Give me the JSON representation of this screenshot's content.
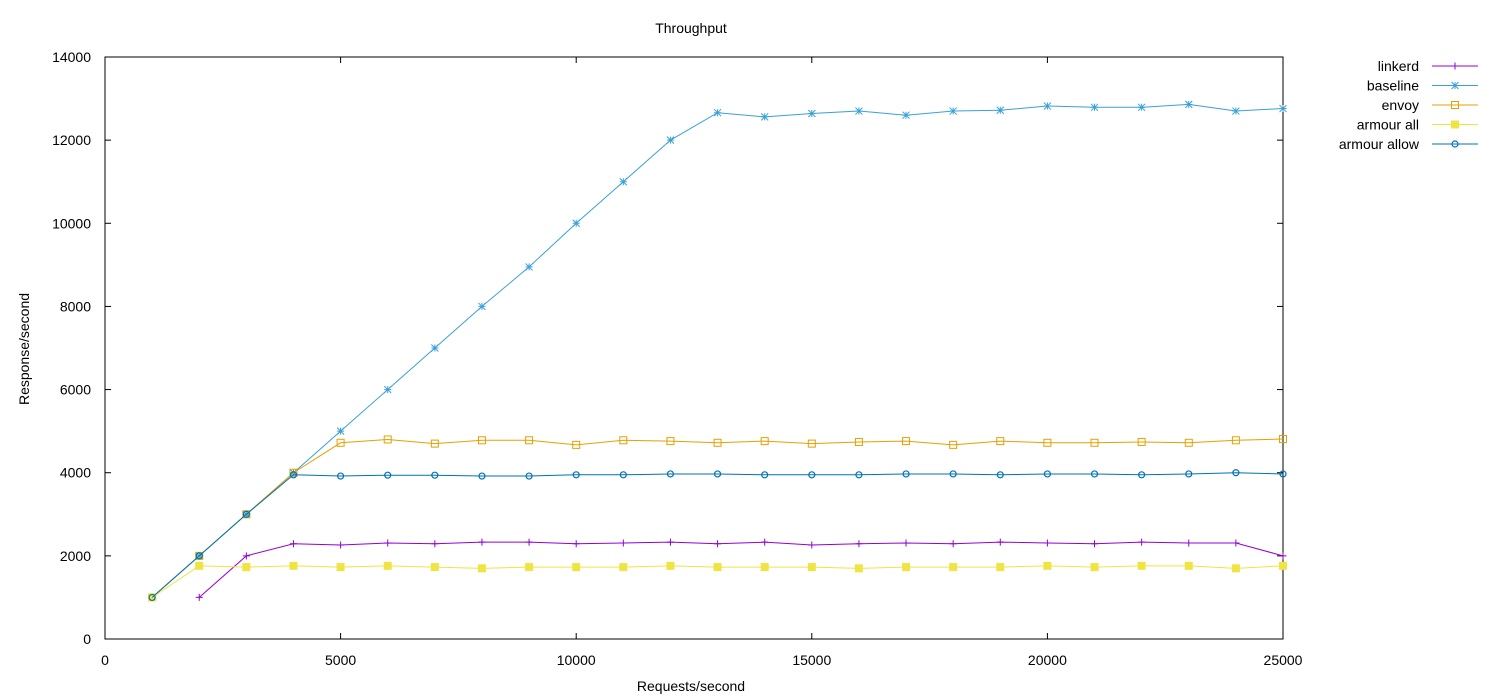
{
  "chart_data": {
    "type": "line",
    "title": "Throughput",
    "xlabel": "Requests/second",
    "ylabel": "Response/second",
    "xlim": [
      0,
      25000
    ],
    "ylim": [
      0,
      14000
    ],
    "xticks": [
      0,
      5000,
      10000,
      15000,
      20000,
      25000
    ],
    "yticks": [
      0,
      2000,
      4000,
      6000,
      8000,
      10000,
      12000,
      14000
    ],
    "grid": false,
    "legend_position": "top-right outside",
    "series": [
      {
        "name": "linkerd",
        "color": "#9400d3",
        "marker": "plus",
        "x": [
          2000,
          3000,
          4000,
          5000,
          6000,
          7000,
          8000,
          9000,
          10000,
          11000,
          12000,
          13000,
          14000,
          15000,
          16000,
          17000,
          18000,
          19000,
          20000,
          21000,
          22000,
          23000,
          24000,
          25000
        ],
        "y": [
          1000,
          2000,
          2290,
          2260,
          2310,
          2290,
          2330,
          2330,
          2290,
          2310,
          2330,
          2290,
          2330,
          2260,
          2290,
          2310,
          2290,
          2330,
          2310,
          2290,
          2330,
          2310,
          2310,
          2000
        ]
      },
      {
        "name": "baseline",
        "color": "#3aa0d8",
        "marker": "star",
        "x": [
          1000,
          2000,
          3000,
          4000,
          5000,
          6000,
          7000,
          8000,
          9000,
          10000,
          11000,
          12000,
          13000,
          14000,
          15000,
          16000,
          17000,
          18000,
          19000,
          20000,
          21000,
          22000,
          23000,
          24000,
          25000
        ],
        "y": [
          1000,
          2000,
          3000,
          4000,
          5000,
          6000,
          7000,
          8000,
          8950,
          10000,
          11000,
          12000,
          12660,
          12560,
          12640,
          12700,
          12600,
          12700,
          12720,
          12820,
          12790,
          12790,
          12860,
          12700,
          12760
        ]
      },
      {
        "name": "envoy",
        "color": "#e6a000",
        "marker": "open-square",
        "x": [
          1000,
          2000,
          3000,
          4000,
          5000,
          6000,
          7000,
          8000,
          9000,
          10000,
          11000,
          12000,
          13000,
          14000,
          15000,
          16000,
          17000,
          18000,
          19000,
          20000,
          21000,
          22000,
          23000,
          24000,
          25000
        ],
        "y": [
          1000,
          2000,
          3000,
          4000,
          4720,
          4800,
          4700,
          4780,
          4780,
          4670,
          4780,
          4760,
          4720,
          4760,
          4700,
          4740,
          4760,
          4670,
          4760,
          4720,
          4720,
          4740,
          4720,
          4780,
          4810
        ]
      },
      {
        "name": "armour all",
        "color": "#f0e442",
        "marker": "filled-square",
        "x": [
          1000,
          2000,
          3000,
          4000,
          5000,
          6000,
          7000,
          8000,
          9000,
          10000,
          11000,
          12000,
          13000,
          14000,
          15000,
          16000,
          17000,
          18000,
          19000,
          20000,
          21000,
          22000,
          23000,
          24000,
          25000
        ],
        "y": [
          1000,
          1760,
          1730,
          1760,
          1730,
          1760,
          1730,
          1700,
          1730,
          1730,
          1730,
          1760,
          1730,
          1730,
          1730,
          1700,
          1730,
          1730,
          1730,
          1760,
          1730,
          1760,
          1760,
          1700,
          1760
        ]
      },
      {
        "name": "armour allow",
        "color": "#0072b2",
        "marker": "open-circle",
        "x": [
          1000,
          2000,
          3000,
          4000,
          5000,
          6000,
          7000,
          8000,
          9000,
          10000,
          11000,
          12000,
          13000,
          14000,
          15000,
          16000,
          17000,
          18000,
          19000,
          20000,
          21000,
          22000,
          23000,
          24000,
          25000
        ],
        "y": [
          1000,
          2000,
          3000,
          3950,
          3920,
          3940,
          3940,
          3920,
          3920,
          3950,
          3950,
          3970,
          3970,
          3950,
          3950,
          3950,
          3970,
          3970,
          3950,
          3970,
          3970,
          3950,
          3970,
          4000,
          3970
        ]
      }
    ]
  }
}
